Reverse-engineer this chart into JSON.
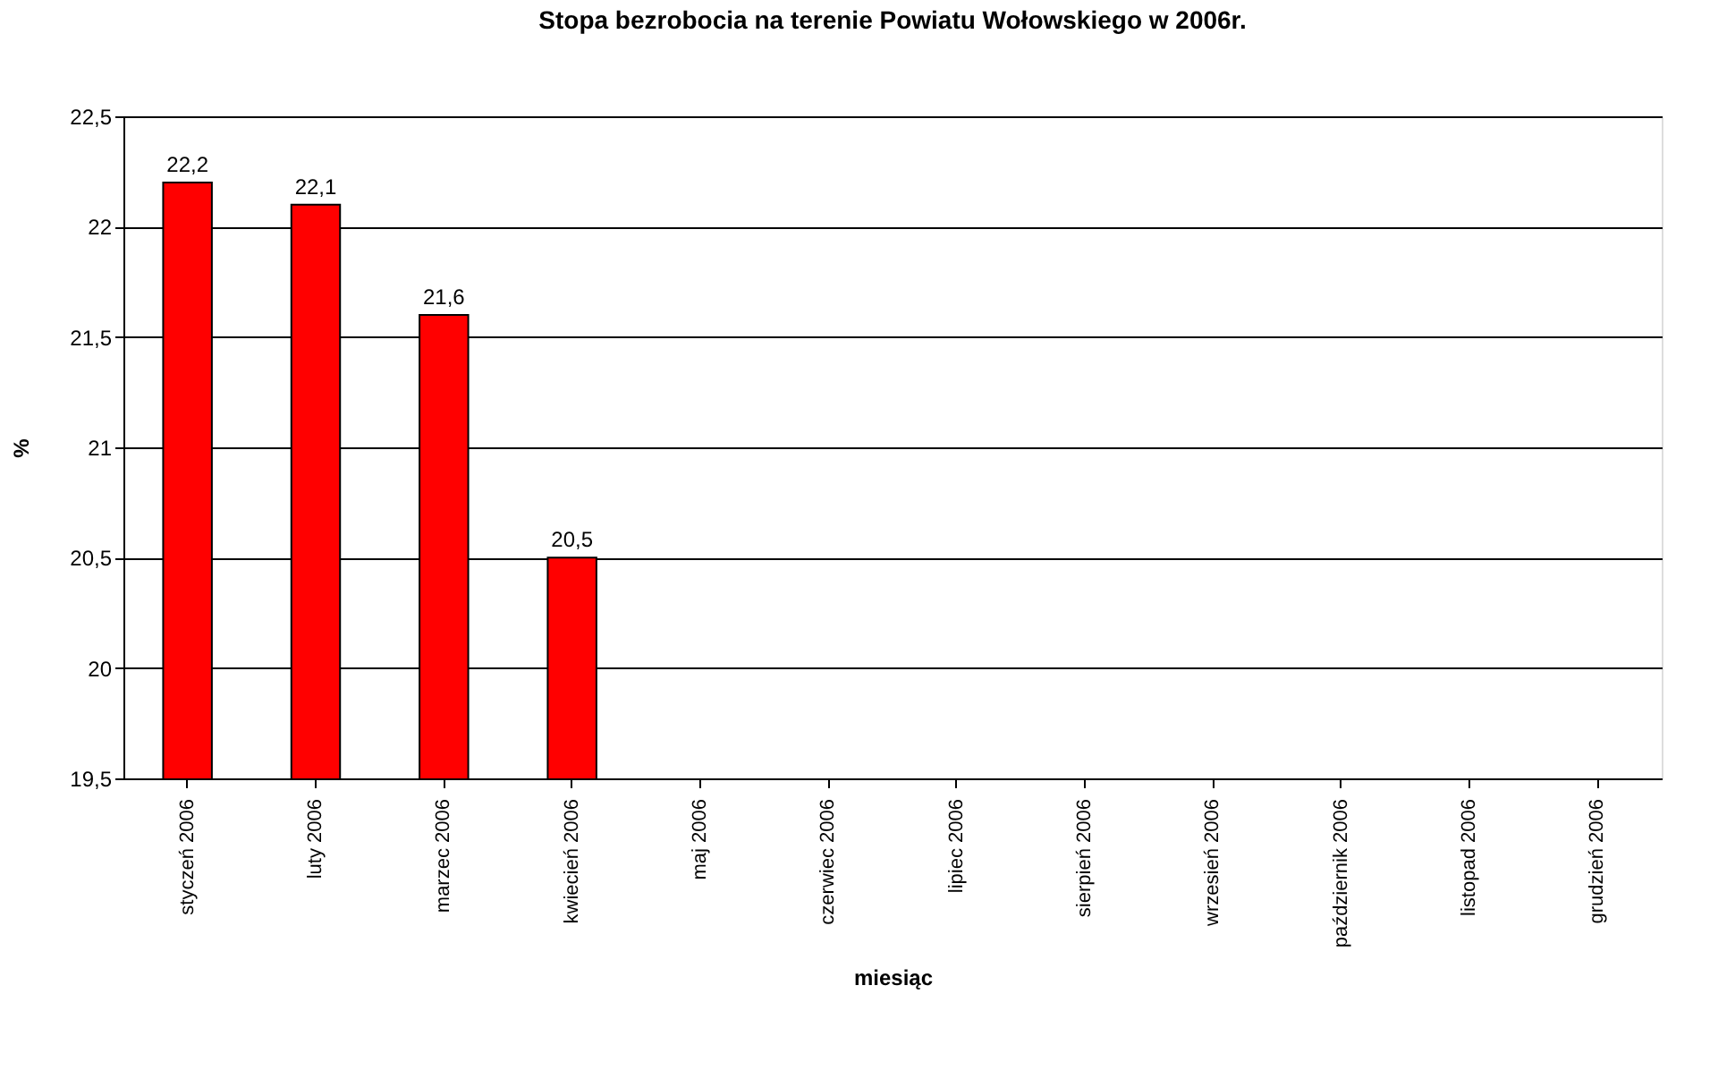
{
  "chart_data": {
    "type": "bar",
    "title": "Stopa bezrobocia na terenie Powiatu Wołowskiego w 2006r.",
    "xlabel": "miesiąc",
    "ylabel": "%",
    "categories": [
      "styczeń 2006",
      "luty 2006",
      "marzec 2006",
      "kwiecień 2006",
      "maj 2006",
      "czerwiec 2006",
      "lipiec 2006",
      "sierpień 2006",
      "wrzesień 2006",
      "październik 2006",
      "listopad 2006",
      "grudzień 2006"
    ],
    "values": [
      22.2,
      22.1,
      21.6,
      20.5,
      null,
      null,
      null,
      null,
      null,
      null,
      null,
      null
    ],
    "value_labels": [
      "22,2",
      "22,1",
      "21,6",
      "20,5",
      null,
      null,
      null,
      null,
      null,
      null,
      null,
      null
    ],
    "color": "#ff0000",
    "ylim": [
      19.5,
      22.5
    ],
    "yticks": [
      {
        "value": 19.5,
        "label": "19,5"
      },
      {
        "value": 20,
        "label": "20"
      },
      {
        "value": 20.5,
        "label": "20,5"
      },
      {
        "value": 21,
        "label": "21"
      },
      {
        "value": 21.5,
        "label": "21,5"
      },
      {
        "value": 22,
        "label": "22"
      },
      {
        "value": 22.5,
        "label": "22,5"
      }
    ],
    "grid": "y"
  }
}
